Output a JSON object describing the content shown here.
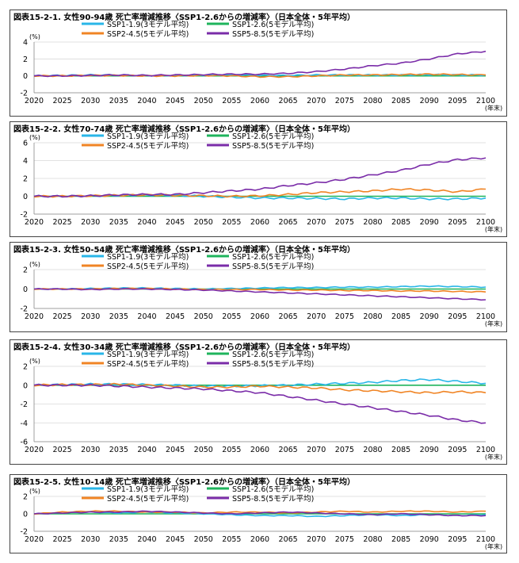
{
  "colors": {
    "SSP1-1.9": "#29b6e8",
    "SSP1-2.6": "#1fb45c",
    "SSP2-4.5": "#f08424",
    "SSP5-8.5": "#7a2ca8"
  },
  "chart_data": [
    {
      "type": "line",
      "title": "図表15-2-1. 女性90-94歳 死亡率増減推移〈SSP1-2.6からの増減率〉（日本全体・5年平均）",
      "ylabel": "(%)",
      "xlabel": "(年末)",
      "xlim": [
        2020,
        2100
      ],
      "ylim": [
        -2,
        4
      ],
      "yticks": [
        -2,
        0,
        2,
        4
      ],
      "xticks": [
        2020,
        2025,
        2030,
        2035,
        2040,
        2045,
        2050,
        2055,
        2060,
        2065,
        2070,
        2075,
        2080,
        2085,
        2090,
        2095,
        2100
      ],
      "grid": "horizontal",
      "legend_position": "top-center",
      "x": [
        2020,
        2025,
        2030,
        2035,
        2040,
        2045,
        2050,
        2055,
        2060,
        2065,
        2070,
        2075,
        2080,
        2085,
        2090,
        2095,
        2100
      ],
      "series": [
        {
          "name": "SSP1-1.9(3モデル平均)",
          "key": "SSP1-1.9",
          "values": [
            0,
            0.05,
            0.1,
            0.1,
            0.05,
            0.05,
            0.1,
            0.1,
            0.05,
            0.05,
            0.1,
            0.1,
            0.1,
            0.1,
            0.15,
            0.1,
            0.1
          ]
        },
        {
          "name": "SSP1-2.6(5モデル平均)",
          "key": "SSP1-2.6",
          "values": [
            0,
            0,
            0,
            0,
            0,
            0,
            0,
            0,
            0,
            0,
            0,
            0,
            0,
            0,
            0,
            0,
            0
          ]
        },
        {
          "name": "SSP2-4.5(5モデル平均)",
          "key": "SSP2-4.5",
          "values": [
            0,
            0,
            0.05,
            0.05,
            0,
            0,
            0.05,
            0,
            -0.1,
            -0.1,
            0,
            0.1,
            0.1,
            0.15,
            0.2,
            0.15,
            0.1
          ]
        },
        {
          "name": "SSP5-8.5(5モデル平均)",
          "key": "SSP5-8.5",
          "values": [
            0,
            0,
            0.05,
            0.1,
            0.05,
            0.1,
            0.15,
            0.2,
            0.2,
            0.3,
            0.5,
            0.8,
            1.2,
            1.5,
            2.0,
            2.6,
            2.9
          ]
        }
      ]
    },
    {
      "type": "line",
      "title": "図表15-2-2. 女性70-74歳 死亡率増減推移〈SSP1-2.6からの増減率〉（日本全体・5年平均）",
      "ylabel": "(%)",
      "xlabel": "(年末)",
      "xlim": [
        2020,
        2100
      ],
      "ylim": [
        -2,
        6
      ],
      "yticks": [
        -2,
        0,
        2,
        4,
        6
      ],
      "xticks": [
        2020,
        2025,
        2030,
        2035,
        2040,
        2045,
        2050,
        2055,
        2060,
        2065,
        2070,
        2075,
        2080,
        2085,
        2090,
        2095,
        2100
      ],
      "grid": "horizontal",
      "legend_position": "top-center",
      "x": [
        2020,
        2025,
        2030,
        2035,
        2040,
        2045,
        2050,
        2055,
        2060,
        2065,
        2070,
        2075,
        2080,
        2085,
        2090,
        2095,
        2100
      ],
      "series": [
        {
          "name": "SSP1-1.9(3モデル平均)",
          "key": "SSP1-1.9",
          "values": [
            0,
            0,
            0.05,
            0.1,
            0.15,
            0.1,
            0,
            -0.1,
            -0.2,
            -0.2,
            -0.25,
            -0.3,
            -0.2,
            -0.2,
            -0.3,
            -0.3,
            -0.2
          ]
        },
        {
          "name": "SSP1-2.6(5モデル平均)",
          "key": "SSP1-2.6",
          "values": [
            0,
            0,
            0,
            0,
            0,
            0,
            0,
            0,
            0,
            0,
            0,
            0,
            0,
            0,
            0,
            0,
            0
          ]
        },
        {
          "name": "SSP2-4.5(5モデル平均)",
          "key": "SSP2-4.5",
          "values": [
            0,
            0,
            0.05,
            0.1,
            0.15,
            0.1,
            0.05,
            0,
            0.05,
            0.2,
            0.4,
            0.5,
            0.6,
            0.8,
            0.7,
            0.5,
            0.8
          ]
        },
        {
          "name": "SSP5-8.5(5モデル平均)",
          "key": "SSP5-8.5",
          "values": [
            0,
            0,
            0.05,
            0.15,
            0.2,
            0.2,
            0.4,
            0.6,
            0.8,
            1.2,
            1.5,
            1.9,
            2.4,
            2.9,
            3.6,
            4.1,
            4.3
          ]
        }
      ]
    },
    {
      "type": "line",
      "title": "図表15-2-3. 女性50-54歳 死亡率増減推移〈SSP1-2.6からの増減率〉（日本全体・5年平均）",
      "ylabel": "(%)",
      "xlabel": "(年末)",
      "xlim": [
        2020,
        2100
      ],
      "ylim": [
        -2,
        2
      ],
      "yticks": [
        -2,
        0,
        2
      ],
      "xticks": [
        2020,
        2025,
        2030,
        2035,
        2040,
        2045,
        2050,
        2055,
        2060,
        2065,
        2070,
        2075,
        2080,
        2085,
        2090,
        2095,
        2100
      ],
      "grid": "horizontal",
      "legend_position": "top-center",
      "x": [
        2020,
        2025,
        2030,
        2035,
        2040,
        2045,
        2050,
        2055,
        2060,
        2065,
        2070,
        2075,
        2080,
        2085,
        2090,
        2095,
        2100
      ],
      "series": [
        {
          "name": "SSP1-1.9(3モデル平均)",
          "key": "SSP1-1.9",
          "values": [
            0,
            0,
            0.05,
            0.1,
            0.1,
            0.05,
            0,
            0.05,
            0.1,
            0.15,
            0.15,
            0.2,
            0.2,
            0.25,
            0.3,
            0.25,
            0.2
          ]
        },
        {
          "name": "SSP1-2.6(5モデル平均)",
          "key": "SSP1-2.6",
          "values": [
            0,
            0,
            0,
            0,
            0,
            0,
            0,
            0,
            0,
            0,
            0,
            0,
            0,
            0,
            0,
            0,
            0
          ]
        },
        {
          "name": "SSP2-4.5(5モデル平均)",
          "key": "SSP2-4.5",
          "values": [
            0,
            0,
            0,
            0.05,
            0.05,
            0,
            -0.05,
            -0.05,
            -0.05,
            -0.1,
            -0.1,
            -0.15,
            -0.15,
            -0.2,
            -0.2,
            -0.25,
            -0.3
          ]
        },
        {
          "name": "SSP5-8.5(5モデル平均)",
          "key": "SSP5-8.5",
          "values": [
            0,
            0,
            -0.05,
            0,
            0,
            -0.05,
            -0.1,
            -0.2,
            -0.3,
            -0.4,
            -0.5,
            -0.6,
            -0.7,
            -0.8,
            -0.9,
            -1.0,
            -1.1
          ]
        }
      ]
    },
    {
      "type": "line",
      "title": "図表15-2-4. 女性30-34歳 死亡率増減推移〈SSP1-2.6からの増減率〉（日本全体・5年平均）",
      "ylabel": "(%)",
      "xlabel": "(年末)",
      "xlim": [
        2020,
        2100
      ],
      "ylim": [
        -6,
        2
      ],
      "yticks": [
        -6,
        -4,
        -2,
        0,
        2
      ],
      "xticks": [
        2020,
        2025,
        2030,
        2035,
        2040,
        2045,
        2050,
        2055,
        2060,
        2065,
        2070,
        2075,
        2080,
        2085,
        2090,
        2095,
        2100
      ],
      "grid": "horizontal",
      "legend_position": "top-center",
      "x": [
        2020,
        2025,
        2030,
        2035,
        2040,
        2045,
        2050,
        2055,
        2060,
        2065,
        2070,
        2075,
        2080,
        2085,
        2090,
        2095,
        2100
      ],
      "series": [
        {
          "name": "SSP1-1.9(3モデル平均)",
          "key": "SSP1-1.9",
          "values": [
            0,
            0.05,
            0.1,
            0.1,
            0.05,
            0,
            -0.1,
            -0.1,
            -0.05,
            0,
            0.1,
            0.2,
            0.3,
            0.5,
            0.6,
            0.4,
            0.2
          ]
        },
        {
          "name": "SSP1-2.6(5モデル平均)",
          "key": "SSP1-2.6",
          "values": [
            0,
            0,
            0,
            0,
            0,
            0,
            0,
            0,
            0,
            0,
            0,
            0,
            0,
            0,
            0,
            0,
            0
          ]
        },
        {
          "name": "SSP2-4.5(5モデル平均)",
          "key": "SSP2-4.5",
          "values": [
            0,
            0.05,
            0.05,
            0.1,
            0,
            -0.1,
            -0.2,
            -0.2,
            -0.1,
            -0.2,
            -0.3,
            -0.5,
            -0.6,
            -0.7,
            -0.8,
            -0.7,
            -0.8
          ]
        },
        {
          "name": "SSP5-8.5(5モデル平均)",
          "key": "SSP5-8.5",
          "values": [
            0,
            0,
            0,
            -0.1,
            -0.2,
            -0.3,
            -0.4,
            -0.6,
            -0.8,
            -1.2,
            -1.6,
            -2.0,
            -2.4,
            -2.8,
            -3.2,
            -3.7,
            -4.0
          ]
        }
      ]
    },
    {
      "type": "line",
      "title": "図表15-2-5. 女性10-14歳 死亡率増減推移〈SSP1-2.6からの増減率〉（日本全体・5年平均）",
      "ylabel": "(%)",
      "xlabel": "(年末)",
      "xlim": [
        2020,
        2100
      ],
      "ylim": [
        -2,
        2
      ],
      "yticks": [
        -2,
        0,
        2
      ],
      "xticks": [
        2020,
        2025,
        2030,
        2035,
        2040,
        2045,
        2050,
        2055,
        2060,
        2065,
        2070,
        2075,
        2080,
        2085,
        2090,
        2095,
        2100
      ],
      "grid": "horizontal",
      "legend_position": "top-center",
      "x": [
        2020,
        2025,
        2030,
        2035,
        2040,
        2045,
        2050,
        2055,
        2060,
        2065,
        2070,
        2075,
        2080,
        2085,
        2090,
        2095,
        2100
      ],
      "series": [
        {
          "name": "SSP1-1.9(3モデル平均)",
          "key": "SSP1-1.9",
          "values": [
            0,
            0.1,
            0.2,
            0.1,
            0.2,
            0.1,
            0,
            -0.1,
            -0.2,
            -0.2,
            -0.3,
            -0.2,
            -0.1,
            -0.2,
            -0.1,
            -0.2,
            -0.1
          ]
        },
        {
          "name": "SSP1-2.6(5モデル平均)",
          "key": "SSP1-2.6",
          "values": [
            0,
            0,
            0,
            0,
            0,
            0,
            0,
            0,
            0,
            0,
            0,
            0,
            0,
            0,
            0,
            0,
            0
          ]
        },
        {
          "name": "SSP2-4.5(5モデル平均)",
          "key": "SSP2-4.5",
          "values": [
            0,
            0.2,
            0.3,
            0.3,
            0.2,
            0.2,
            0.1,
            0.2,
            0.2,
            0.1,
            0.2,
            0.3,
            0.2,
            0.3,
            0.3,
            0.2,
            0.3
          ]
        },
        {
          "name": "SSP5-8.5(5モデル平均)",
          "key": "SSP5-8.5",
          "values": [
            0,
            0.1,
            0.2,
            0.2,
            0.3,
            0.2,
            0.1,
            0,
            0.1,
            0.2,
            0.1,
            0,
            -0.1,
            0,
            -0.1,
            -0.2,
            -0.2
          ]
        }
      ]
    }
  ]
}
